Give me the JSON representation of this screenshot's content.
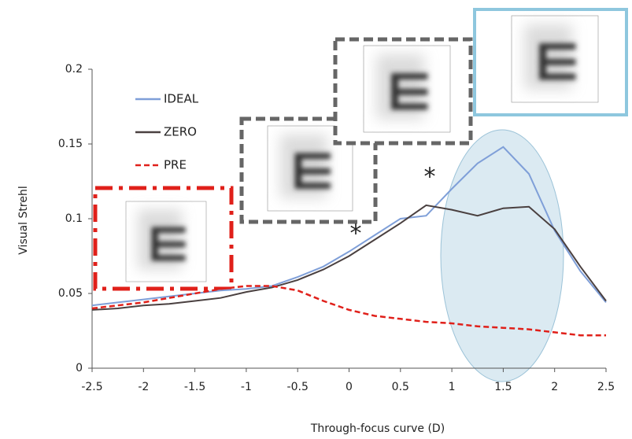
{
  "chart_data": {
    "type": "line",
    "x_label": "Through-focus curve (D)",
    "y_label": "Visual Strehl",
    "x": [
      -2.5,
      -2.25,
      -2,
      -1.75,
      -1.5,
      -1.25,
      -1,
      -0.75,
      -0.5,
      -0.25,
      0,
      0.25,
      0.5,
      0.75,
      1,
      1.25,
      1.5,
      1.75,
      2,
      2.25,
      2.5
    ],
    "series": [
      {
        "name": "IDEAL",
        "color": "#7f9fd8",
        "dash": "solid",
        "values": [
          0.042,
          0.044,
          0.046,
          0.048,
          0.05,
          0.052,
          0.053,
          0.055,
          0.061,
          0.068,
          0.078,
          0.089,
          0.1,
          0.102,
          0.12,
          0.137,
          0.148,
          0.13,
          0.092,
          0.065,
          0.044
        ]
      },
      {
        "name": "ZERO",
        "color": "#4a4040",
        "dash": "solid",
        "values": [
          0.039,
          0.04,
          0.042,
          0.043,
          0.045,
          0.047,
          0.051,
          0.054,
          0.059,
          0.066,
          0.075,
          0.086,
          0.097,
          0.109,
          0.106,
          0.102,
          0.107,
          0.108,
          0.093,
          0.068,
          0.045
        ]
      },
      {
        "name": "PRE",
        "color": "#e0201a",
        "dash": "dashed",
        "values": [
          0.04,
          0.042,
          0.044,
          0.047,
          0.05,
          0.053,
          0.055,
          0.055,
          0.052,
          0.045,
          0.039,
          0.035,
          0.033,
          0.031,
          0.03,
          0.028,
          0.027,
          0.026,
          0.024,
          0.022,
          0.022
        ]
      }
    ],
    "xlim": [
      -2.5,
      2.5
    ],
    "xticks": [
      -2.5,
      -2,
      -1.5,
      -1,
      -0.5,
      0,
      0.5,
      1,
      1.5,
      2,
      2.5
    ],
    "ylim": [
      0,
      0.2
    ],
    "yticks": [
      0,
      0.05,
      0.1,
      0.15,
      0.2
    ],
    "annotations": [
      "*",
      "*"
    ]
  }
}
